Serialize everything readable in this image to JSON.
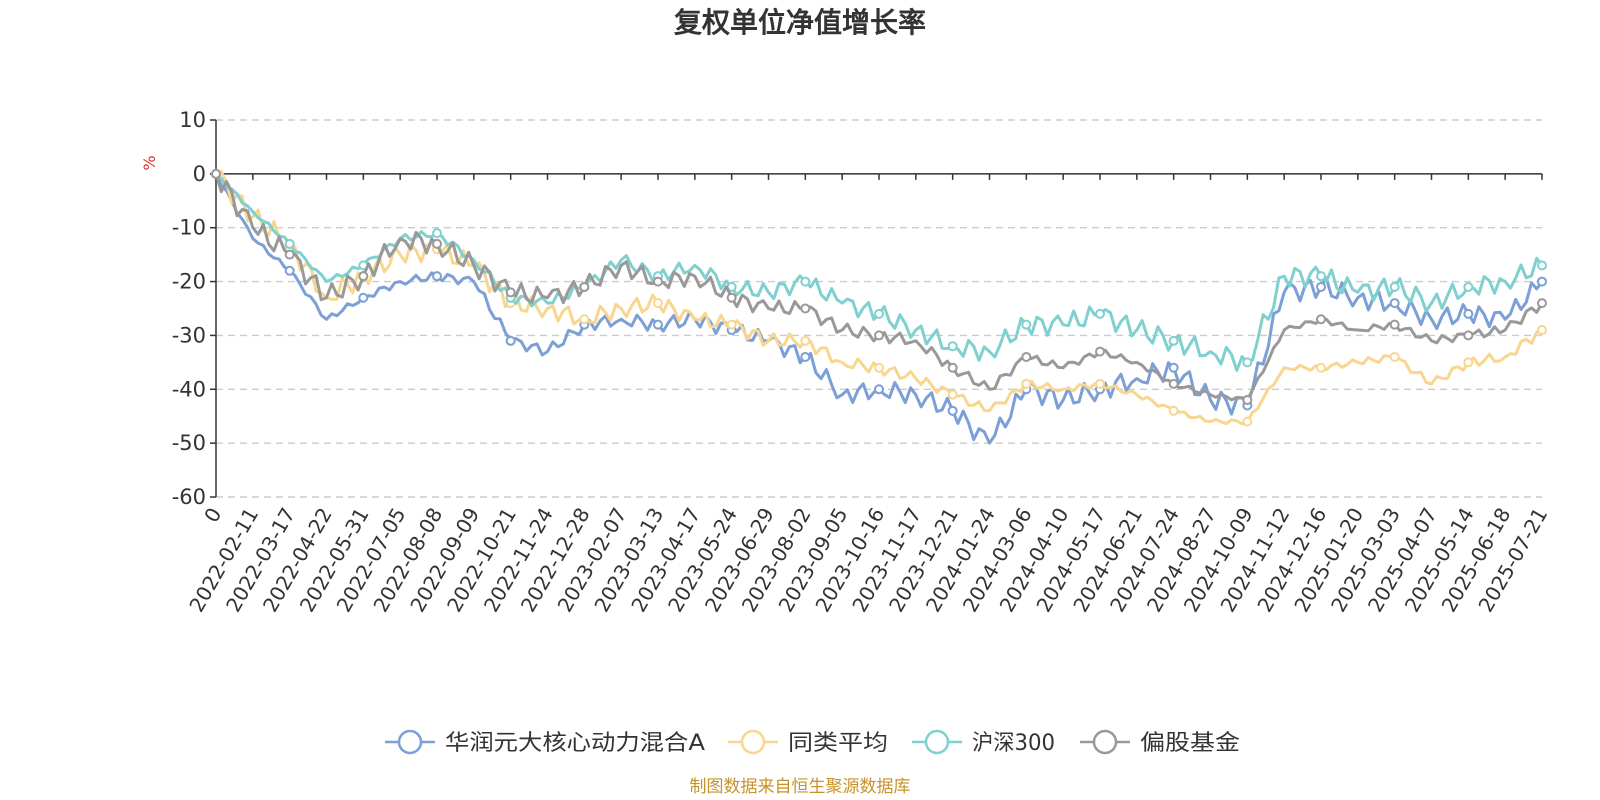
{
  "chart_data": {
    "type": "line",
    "title": "复权单位净值增长率",
    "ylabel": "%",
    "ylim": [
      -60,
      10
    ],
    "yticks": [
      10,
      0,
      -10,
      -20,
      -30,
      -40,
      -50,
      -60
    ],
    "grid": true,
    "legend_position": "bottom",
    "categories": [
      "0",
      "2022-02-11",
      "2022-03-17",
      "2022-04-22",
      "2022-05-31",
      "2022-07-05",
      "2022-08-08",
      "2022-09-09",
      "2022-10-21",
      "2022-11-24",
      "2022-12-28",
      "2023-02-07",
      "2023-03-13",
      "2023-04-17",
      "2023-05-24",
      "2023-06-29",
      "2023-08-02",
      "2023-09-05",
      "2023-10-16",
      "2023-11-17",
      "2023-12-21",
      "2024-01-24",
      "2024-03-06",
      "2024-04-10",
      "2024-05-17",
      "2024-06-21",
      "2024-07-24",
      "2024-08-27",
      "2024-10-09",
      "2024-11-12",
      "2024-12-16",
      "2025-01-20",
      "2025-03-03",
      "2025-04-07",
      "2025-05-14",
      "2025-06-18",
      "2025-07-21"
    ],
    "series": [
      {
        "name": "华润元大核心动力混合A",
        "color": "#7b9fd6",
        "values": [
          0,
          -12,
          -18,
          -27,
          -23,
          -20,
          -19,
          -20,
          -31,
          -33,
          -28,
          -27,
          -28,
          -27,
          -29,
          -31,
          -34,
          -41,
          -40,
          -41,
          -44,
          -50,
          -40,
          -42,
          -40,
          -38,
          -36,
          -42,
          -43,
          -22,
          -21,
          -23,
          -24,
          -27,
          -26,
          -27,
          -20
        ]
      },
      {
        "name": "同类平均",
        "color": "#f9d68f",
        "values": [
          0,
          -8,
          -13,
          -23,
          -19,
          -15,
          -14,
          -17,
          -24,
          -25,
          -27,
          -25,
          -24,
          -27,
          -28,
          -31,
          -31,
          -35,
          -36,
          -38,
          -41,
          -44,
          -39,
          -40,
          -39,
          -41,
          -44,
          -46,
          -46,
          -36,
          -36,
          -35,
          -34,
          -39,
          -35,
          -34,
          -29
        ]
      },
      {
        "name": "沪深300",
        "color": "#7fd0cf",
        "values": [
          0,
          -7,
          -13,
          -20,
          -17,
          -12,
          -11,
          -16,
          -23,
          -24,
          -21,
          -16,
          -19,
          -17,
          -21,
          -22,
          -20,
          -24,
          -26,
          -29,
          -32,
          -33,
          -28,
          -28,
          -26,
          -29,
          -31,
          -33,
          -35,
          -19,
          -19,
          -22,
          -21,
          -24,
          -21,
          -20,
          -17
        ]
      },
      {
        "name": "偏股基金",
        "color": "#999999",
        "values": [
          0,
          -10,
          -15,
          -23,
          -19,
          -12,
          -13,
          -17,
          -22,
          -23,
          -21,
          -17,
          -20,
          -19,
          -23,
          -25,
          -25,
          -29,
          -30,
          -31,
          -36,
          -40,
          -34,
          -36,
          -33,
          -35,
          -39,
          -41,
          -42,
          -29,
          -27,
          -29,
          -28,
          -31,
          -30,
          -29,
          -24
        ]
      }
    ]
  },
  "source_note": "制图数据来自恒生聚源数据库"
}
